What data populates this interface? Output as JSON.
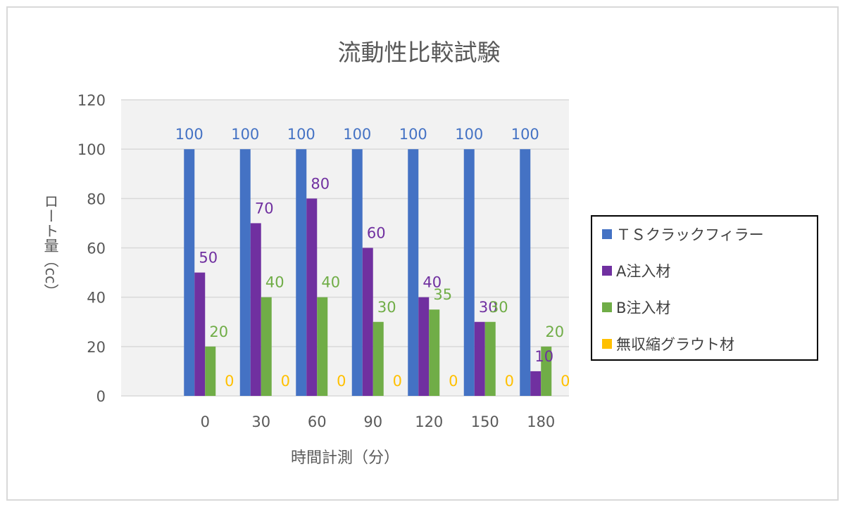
{
  "chart_data": {
    "type": "bar",
    "title": "流動性比較試験",
    "xlabel": "時間計測（分）",
    "ylabel": "ロート量（cc）",
    "categories": [
      "",
      "0",
      "30",
      "60",
      "90",
      "120",
      "150",
      "180"
    ],
    "ylim": [
      0,
      120
    ],
    "yticks": [
      "0",
      "20",
      "40",
      "60",
      "80",
      "100",
      "120"
    ],
    "grid": true,
    "legend_position": "right",
    "series": [
      {
        "name": "ＴＳクラックフィラー",
        "color": "#4472C4",
        "values": [
          null,
          100,
          100,
          100,
          100,
          100,
          100,
          100
        ],
        "labels": [
          "",
          "100",
          "100",
          "100",
          "100",
          "100",
          "100",
          "100"
        ]
      },
      {
        "name": "A注入材",
        "color": "#7030A0",
        "values": [
          null,
          50,
          70,
          80,
          60,
          40,
          30,
          10
        ],
        "labels": [
          "",
          "50",
          "70",
          "80",
          "60",
          "40",
          "30",
          "10"
        ]
      },
      {
        "name": "B注入材",
        "color": "#70AD47",
        "values": [
          null,
          20,
          40,
          40,
          30,
          35,
          30,
          20
        ],
        "labels": [
          "",
          "20",
          "40",
          "40",
          "30",
          "35",
          "30",
          "20"
        ]
      },
      {
        "name": "無収縮グラウト材",
        "color": "#FFC000",
        "values": [
          null,
          0,
          0,
          0,
          0,
          0,
          0,
          0
        ],
        "labels": [
          "",
          "0",
          "0",
          "0",
          "0",
          "0",
          "0",
          "0"
        ]
      }
    ]
  }
}
